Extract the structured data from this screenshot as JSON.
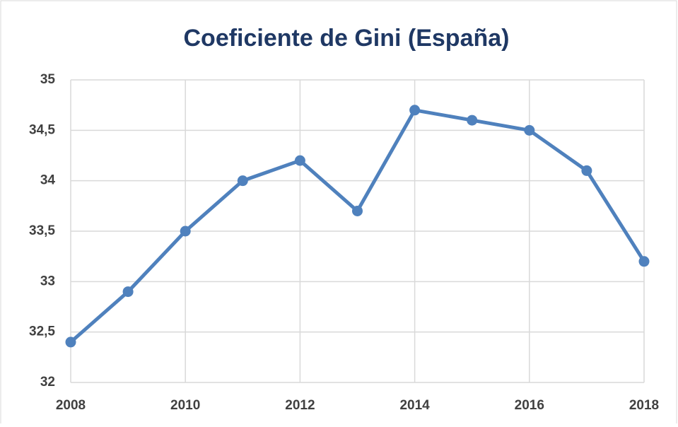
{
  "chart_data": {
    "type": "line",
    "title": "Coeficiente de Gini (España)",
    "x": [
      2008,
      2009,
      2010,
      2011,
      2012,
      2013,
      2014,
      2015,
      2016,
      2017,
      2018
    ],
    "values": [
      32.4,
      32.9,
      33.5,
      34.0,
      34.2,
      33.7,
      34.7,
      34.6,
      34.5,
      34.1,
      33.2
    ],
    "color": "#4f81bd",
    "xlim": [
      2008,
      2018
    ],
    "xticks": [
      2008,
      2010,
      2012,
      2014,
      2016,
      2018
    ],
    "ylim": [
      32,
      35
    ],
    "yticks": [
      32,
      {
        "value": 32.5,
        "label": "32,5"
      },
      33,
      {
        "value": 33.5,
        "label": "33,5"
      },
      34,
      {
        "value": 34.5,
        "label": "34,5"
      },
      35
    ],
    "grid": true
  }
}
